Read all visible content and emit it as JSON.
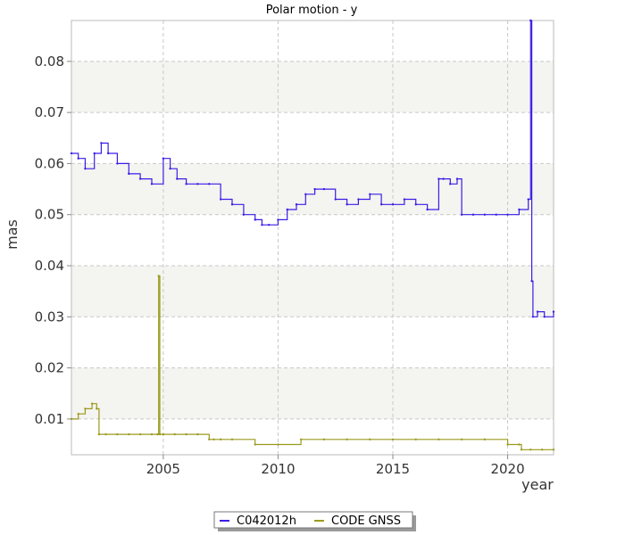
{
  "chart_data": {
    "type": "line",
    "title": "Polar motion - y",
    "xlabel": "year",
    "ylabel": "mas",
    "xlim": [
      2001.0,
      2022.0
    ],
    "ylim": [
      0.003,
      0.088
    ],
    "xticks": [
      2005,
      2010,
      2015,
      2020
    ],
    "yticks": [
      0.01,
      0.02,
      0.03,
      0.04,
      0.05,
      0.06,
      0.07,
      0.08
    ],
    "ytick_labels": [
      "0.01",
      "0.02",
      "0.03",
      "0.04",
      "0.05",
      "0.06",
      "0.07",
      "0.08"
    ],
    "grid": true,
    "alternating_bands": true,
    "legend_position": "bottom-center",
    "series": [
      {
        "name": "C042012h",
        "color": "#3a1ee6",
        "x": [
          2001.0,
          2001.3,
          2001.6,
          2002.0,
          2002.3,
          2002.6,
          2003.0,
          2003.5,
          2004.0,
          2004.5,
          2005.0,
          2005.3,
          2005.6,
          2006.0,
          2006.5,
          2007.0,
          2007.5,
          2008.0,
          2008.5,
          2009.0,
          2009.3,
          2009.6,
          2010.0,
          2010.4,
          2010.8,
          2011.2,
          2011.6,
          2012.0,
          2012.5,
          2013.0,
          2013.5,
          2014.0,
          2014.5,
          2015.0,
          2015.5,
          2016.0,
          2016.5,
          2017.0,
          2017.2,
          2017.5,
          2017.8,
          2018.0,
          2018.5,
          2019.0,
          2019.5,
          2020.0,
          2020.5,
          2020.9,
          2021.0,
          2021.05,
          2021.1,
          2021.3,
          2021.6,
          2022.0
        ],
        "y": [
          0.062,
          0.061,
          0.059,
          0.062,
          0.064,
          0.062,
          0.06,
          0.058,
          0.057,
          0.056,
          0.061,
          0.059,
          0.057,
          0.056,
          0.056,
          0.056,
          0.053,
          0.052,
          0.05,
          0.049,
          0.048,
          0.048,
          0.049,
          0.051,
          0.052,
          0.054,
          0.055,
          0.055,
          0.053,
          0.052,
          0.053,
          0.054,
          0.052,
          0.052,
          0.053,
          0.052,
          0.051,
          0.057,
          0.057,
          0.056,
          0.057,
          0.05,
          0.05,
          0.05,
          0.05,
          0.05,
          0.051,
          0.053,
          0.088,
          0.037,
          0.03,
          0.031,
          0.03,
          0.031
        ]
      },
      {
        "name": "CODE GNSS",
        "color": "#9a9a1e",
        "x": [
          2001.0,
          2001.3,
          2001.6,
          2001.9,
          2002.1,
          2002.2,
          2002.5,
          2003.0,
          2003.5,
          2004.0,
          2004.5,
          2004.75,
          2004.8,
          2004.85,
          2005.0,
          2005.5,
          2006.0,
          2006.5,
          2007.0,
          2007.2,
          2007.5,
          2008.0,
          2009.0,
          2010.0,
          2011.0,
          2012.0,
          2013.0,
          2014.0,
          2015.0,
          2016.0,
          2017.0,
          2018.0,
          2019.0,
          2020.0,
          2020.5,
          2020.6,
          2021.0,
          2021.5,
          2022.0
        ],
        "y": [
          0.01,
          0.011,
          0.012,
          0.013,
          0.012,
          0.007,
          0.007,
          0.007,
          0.007,
          0.007,
          0.007,
          0.007,
          0.038,
          0.007,
          0.007,
          0.007,
          0.007,
          0.007,
          0.006,
          0.006,
          0.006,
          0.006,
          0.005,
          0.005,
          0.006,
          0.006,
          0.006,
          0.006,
          0.006,
          0.006,
          0.006,
          0.006,
          0.006,
          0.005,
          0.005,
          0.004,
          0.004,
          0.004,
          0.004
        ]
      }
    ]
  }
}
